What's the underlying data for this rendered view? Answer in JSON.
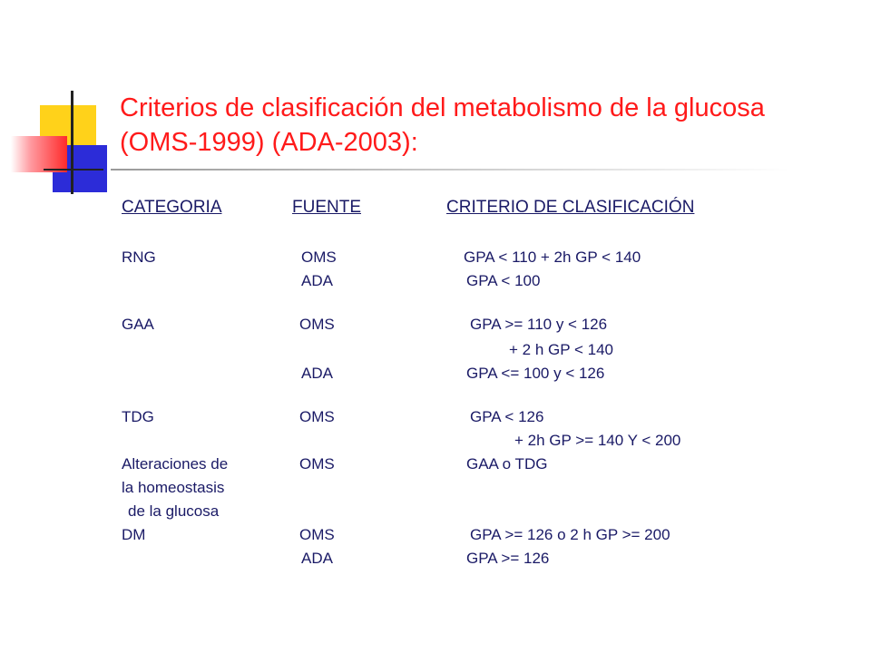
{
  "slide": {
    "title_line1": "Criterios de clasificación del metabolismo de la glucosa",
    "title_line2": "(OMS-1999) (ADA-2003):"
  },
  "table": {
    "headers": [
      "CATEGORIA",
      "FUENTE",
      "CRITERIO DE CLASIFICACIÓN"
    ],
    "rows": [
      {
        "category": "RNG",
        "source": "OMS",
        "criterion": "GPA < 110 + 2h GP < 140"
      },
      {
        "category": "",
        "source": "ADA",
        "criterion": "GPA < 100"
      },
      {
        "category": "GAA",
        "source": "OMS",
        "criterion": "GPA >= 110 y < 126"
      },
      {
        "category": "",
        "source": "",
        "criterion": "+ 2 h GP < 140"
      },
      {
        "category": "",
        "source": "ADA",
        "criterion": "GPA <= 100 y < 126"
      },
      {
        "category": "TDG",
        "source": "OMS",
        "criterion": "GPA < 126"
      },
      {
        "category": "",
        "source": "",
        "criterion": "+ 2h GP >= 140 Y < 200"
      },
      {
        "category": "Alteraciones de",
        "source": "OMS",
        "criterion": "GAA o TDG"
      },
      {
        "category": "la homeostasis",
        "source": "",
        "criterion": ""
      },
      {
        "category": "de la glucosa",
        "source": "",
        "criterion": ""
      },
      {
        "category": "DM",
        "source": "OMS",
        "criterion": "GPA >= 126 o 2 h GP >= 200"
      },
      {
        "category": "",
        "source": "ADA",
        "criterion": "GPA >= 126"
      }
    ]
  }
}
